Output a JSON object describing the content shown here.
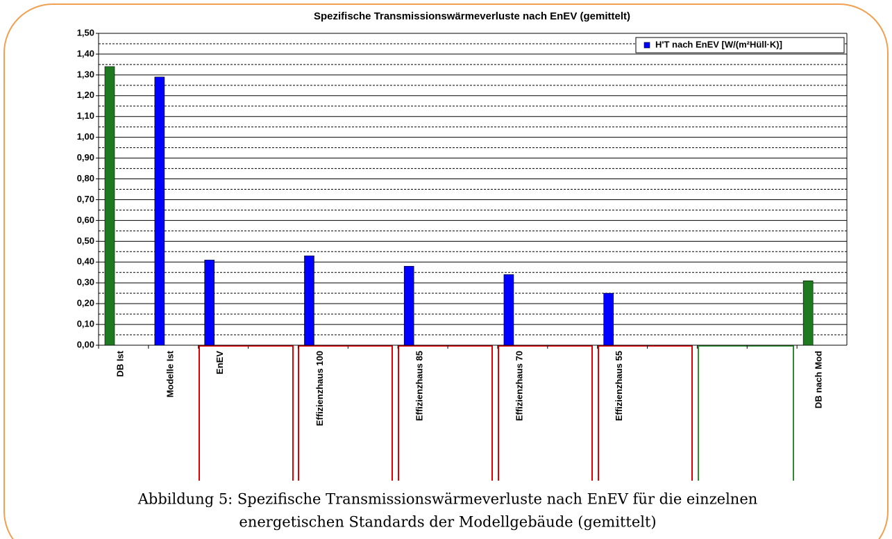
{
  "chart_data": {
    "type": "bar",
    "title": "Spezifische Transmissionswärmeverluste nach EnEV (gemittelt)",
    "categories": [
      "DB Ist",
      "Modelle Ist",
      "EnEV",
      null,
      "Effizienzhaus 100",
      null,
      "Effizienzhaus 85",
      null,
      "Effizienzhaus 70",
      null,
      "Effizienzhaus 55",
      null,
      null,
      null,
      "DB nach Mod"
    ],
    "series": [
      {
        "name": "H'T nach EnEV [W/(m²Hüll·K)]",
        "color": "#0000ff",
        "values": [
          1.34,
          1.29,
          0.41,
          null,
          0.43,
          null,
          0.38,
          null,
          0.34,
          null,
          0.25,
          null,
          null,
          null,
          0.31
        ],
        "colors": [
          "#1f7a1f",
          "#0000ff",
          "#0000ff",
          null,
          "#0000ff",
          null,
          "#0000ff",
          null,
          "#0000ff",
          null,
          "#0000ff",
          null,
          null,
          null,
          "#1f7a1f"
        ]
      }
    ],
    "ylim": [
      0,
      1.5
    ],
    "yticks": [
      {
        "value": 0,
        "label": "0,00"
      },
      {
        "value": 0.1,
        "label": "0,10"
      },
      {
        "value": 0.2,
        "label": "0,20"
      },
      {
        "value": 0.3,
        "label": "0,30"
      },
      {
        "value": 0.4,
        "label": "0,40"
      },
      {
        "value": 0.5,
        "label": "0,50"
      },
      {
        "value": 0.6,
        "label": "0,60"
      },
      {
        "value": 0.7,
        "label": "0,70"
      },
      {
        "value": 0.8,
        "label": "0,80"
      },
      {
        "value": 0.9,
        "label": "0,90"
      },
      {
        "value": 1,
        "label": "1,00"
      },
      {
        "value": 1.1,
        "label": "1,10"
      },
      {
        "value": 1.2,
        "label": "1,20"
      },
      {
        "value": 1.3,
        "label": "1,30"
      },
      {
        "value": 1.4,
        "label": "1,40"
      },
      {
        "value": 1.5,
        "label": "1,50"
      }
    ],
    "minor_yticks": [
      0.05,
      0.15,
      0.25,
      0.35,
      0.45,
      0.55,
      0.65,
      0.75,
      0.85,
      0.95,
      1.05,
      1.15,
      1.25,
      1.35,
      1.45
    ],
    "grid": true,
    "legend": "upper right",
    "caption": [
      "Abbildung 5: Spezifische Transmissionswärmeverluste nach EnEV für die einzelnen",
      "energetischen Standards der Modellgebäude (gemittelt)"
    ]
  }
}
